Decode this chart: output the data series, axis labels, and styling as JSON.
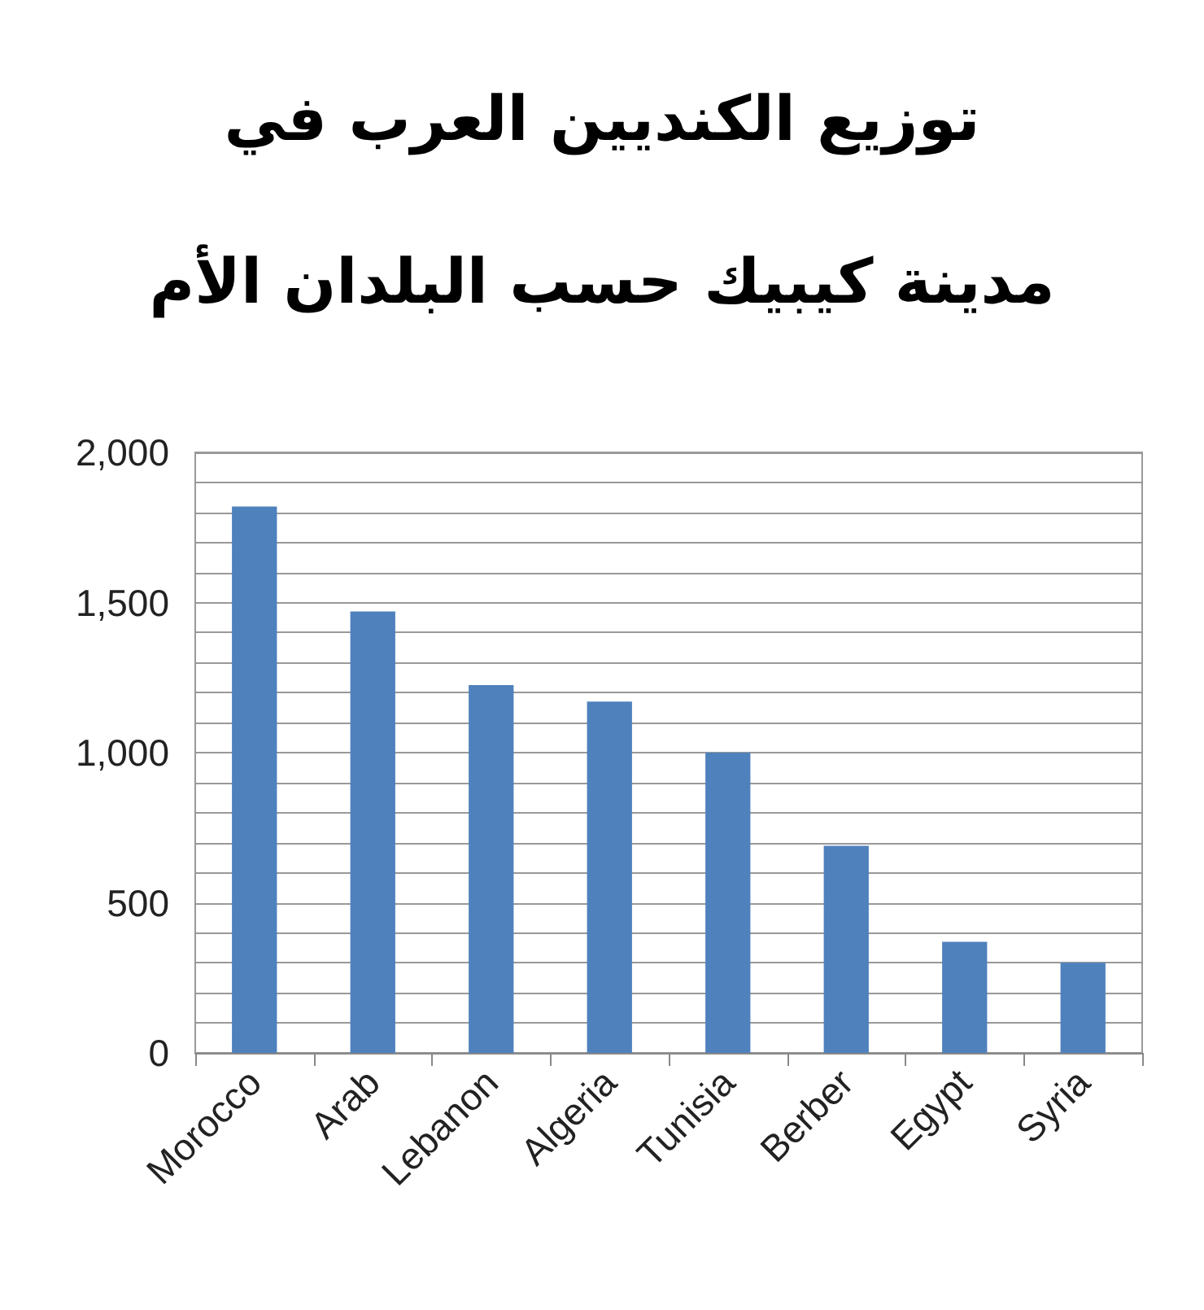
{
  "chart_data": {
    "type": "bar",
    "title": "توزيع الكنديين العرب في\nمدينة كيبيك حسب البلدان الأم",
    "categories": [
      "Morocco",
      "Arab",
      "Lebanon",
      "Algeria",
      "Tunisia",
      "Berber",
      "Egypt",
      "Syria"
    ],
    "values": [
      1820,
      1470,
      1225,
      1170,
      1000,
      690,
      370,
      300
    ],
    "color": "#4f81bd",
    "ylim": [
      0,
      2000
    ],
    "yticks": [
      0,
      {
        "value": 100,
        "label": null
      },
      {
        "value": 200,
        "label": null
      },
      {
        "value": 300,
        "label": null
      },
      {
        "value": 400,
        "label": null
      },
      500,
      {
        "value": 600,
        "label": null
      },
      {
        "value": 700,
        "label": null
      },
      {
        "value": 800,
        "label": null
      },
      {
        "value": 900,
        "label": null
      },
      {
        "value": 1000,
        "label": "1,000"
      },
      {
        "value": 1100,
        "label": null
      },
      {
        "value": 1200,
        "label": null
      },
      {
        "value": 1300,
        "label": null
      },
      {
        "value": 1400,
        "label": null
      },
      {
        "value": 1500,
        "label": "1,500"
      },
      {
        "value": 1600,
        "label": null
      },
      {
        "value": 1700,
        "label": null
      },
      {
        "value": 1800,
        "label": null
      },
      {
        "value": 1900,
        "label": null
      },
      {
        "value": 2000,
        "label": "2,000"
      }
    ],
    "grid": true
  }
}
